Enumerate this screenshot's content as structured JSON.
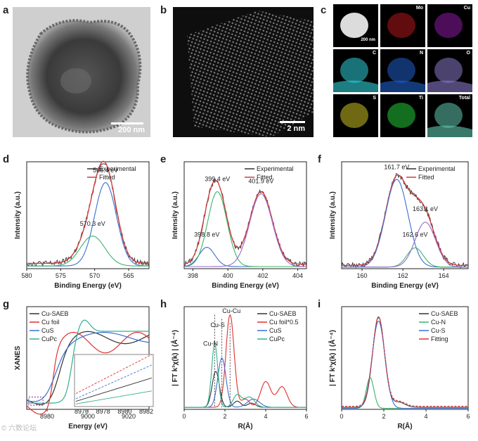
{
  "panels": {
    "a": {
      "letter": "a",
      "scale": "200 nm"
    },
    "b": {
      "letter": "b",
      "scale": "2 nm"
    },
    "c": {
      "letter": "c",
      "scale": "200 nm",
      "maps": [
        {
          "label": "",
          "color": "#e8e8e8"
        },
        {
          "label": "Mo",
          "color": "#b0161a"
        },
        {
          "label": "Cu",
          "color": "#8a1aa0"
        },
        {
          "label": "C",
          "color": "#2ed0d8"
        },
        {
          "label": "N",
          "color": "#1f5fc8"
        },
        {
          "label": "O",
          "color": "#8878c8"
        },
        {
          "label": "S",
          "color": "#c8c020"
        },
        {
          "label": "Ti",
          "color": "#22c83a"
        },
        {
          "label": "Total",
          "color": "#60c8b0"
        }
      ]
    }
  },
  "colors": {
    "experimental": "#333333",
    "fitted": "#d23a3a",
    "blue": "#3a6fd0",
    "green": "#3ab56a",
    "purple": "#9a6ad0",
    "red": "#e03030",
    "teal": "#30b090"
  },
  "chart_data": [
    {
      "id": "d",
      "letter": "d",
      "type": "line",
      "xlabel": "Binding Energy (eV)",
      "ylabel": "Intensity (a.u.)",
      "xlim": [
        580,
        562
      ],
      "xticks": [
        565,
        570,
        575,
        580
      ],
      "legend": [
        "Experimental",
        "Fitted"
      ],
      "annotations": [
        {
          "text": "568.4 eV",
          "x": 568.4
        },
        {
          "text": "570.3 eV",
          "x": 570.3
        }
      ],
      "peaks": [
        {
          "center": 568.4,
          "width": 1.6,
          "height": 0.78,
          "color": "blue"
        },
        {
          "center": 570.3,
          "width": 1.8,
          "height": 0.28,
          "color": "green"
        }
      ],
      "baseline": 0.05
    },
    {
      "id": "e",
      "letter": "e",
      "type": "line",
      "xlabel": "Binding Energy (eV)",
      "ylabel": "Intensity (a.u.)",
      "xlim": [
        397.5,
        404.5
      ],
      "xticks": [
        398,
        400,
        402,
        404
      ],
      "legend": [
        "Experimental",
        "Fitted"
      ],
      "annotations": [
        {
          "text": "398.8 eV",
          "x": 398.8
        },
        {
          "text": "399.4 eV",
          "x": 399.4
        },
        {
          "text": "401.9 eV",
          "x": 401.9
        }
      ],
      "peaks": [
        {
          "center": 398.8,
          "width": 0.45,
          "height": 0.18,
          "color": "blue"
        },
        {
          "center": 399.4,
          "width": 0.55,
          "height": 0.7,
          "color": "green"
        },
        {
          "center": 401.9,
          "width": 0.65,
          "height": 0.68,
          "color": "purple"
        }
      ],
      "baseline": 0.04
    },
    {
      "id": "f",
      "letter": "f",
      "type": "line",
      "xlabel": "Binding Energy (eV)",
      "ylabel": "Intensity (a.u.)",
      "xlim": [
        159,
        165.2
      ],
      "xticks": [
        160,
        162,
        164
      ],
      "legend": [
        "Experimental",
        "Fitted"
      ],
      "annotations": [
        {
          "text": "161.7 eV",
          "x": 161.7
        },
        {
          "text": "162.6 eV",
          "x": 162.6
        },
        {
          "text": "163.1 eV",
          "x": 163.1
        }
      ],
      "peaks": [
        {
          "center": 161.7,
          "width": 0.55,
          "height": 0.82,
          "color": "blue"
        },
        {
          "center": 162.6,
          "width": 0.4,
          "height": 0.18,
          "color": "green"
        },
        {
          "center": 163.1,
          "width": 0.5,
          "height": 0.42,
          "color": "purple"
        }
      ],
      "baseline": 0.03
    },
    {
      "id": "g",
      "letter": "g",
      "type": "line",
      "xlabel": "Energy (eV)",
      "ylabel": "XANES",
      "xlim": [
        8970,
        9030
      ],
      "xticks": [
        8980,
        9000,
        9020
      ],
      "series": [
        {
          "name": "Cu-SAEB",
          "color": "#333333"
        },
        {
          "name": "Cu foil",
          "color": "#e03030"
        },
        {
          "name": "CuS",
          "color": "#3a6fd0"
        },
        {
          "name": "CuPc",
          "color": "#30b090"
        }
      ],
      "inset": {
        "xticks": [
          8976,
          8978,
          8980,
          8982
        ]
      }
    },
    {
      "id": "h",
      "letter": "h",
      "type": "line",
      "xlabel": "R(Å)",
      "ylabel": "| FT k³χ(k) | (Å⁻⁴)",
      "xlim": [
        0,
        6
      ],
      "xticks": [
        0,
        2,
        4,
        6
      ],
      "series": [
        {
          "name": "Cu-SAEB",
          "color": "#333333"
        },
        {
          "name": "Cu foil*0.5",
          "color": "#e03030"
        },
        {
          "name": "CuS",
          "color": "#3a6fd0"
        },
        {
          "name": "CuPc",
          "color": "#30b090"
        }
      ],
      "annotations": [
        {
          "text": "Cu-N",
          "x": 1.5
        },
        {
          "text": "Cu-S",
          "x": 1.85
        },
        {
          "text": "Cu-Cu",
          "x": 2.25
        }
      ]
    },
    {
      "id": "i",
      "letter": "i",
      "type": "line",
      "xlabel": "R(Å)",
      "ylabel": "| FT k³χ(k) | (Å⁻⁴)",
      "xlim": [
        0,
        6
      ],
      "xticks": [
        0,
        2,
        4,
        6
      ],
      "series": [
        {
          "name": "Cu-SAEB",
          "color": "#333333"
        },
        {
          "name": "Cu-N",
          "color": "#3ab56a"
        },
        {
          "name": "Cu-S",
          "color": "#3a6fd0"
        },
        {
          "name": "Fitting",
          "color": "#e03030"
        }
      ]
    }
  ],
  "watermark": "© 六数论坛"
}
